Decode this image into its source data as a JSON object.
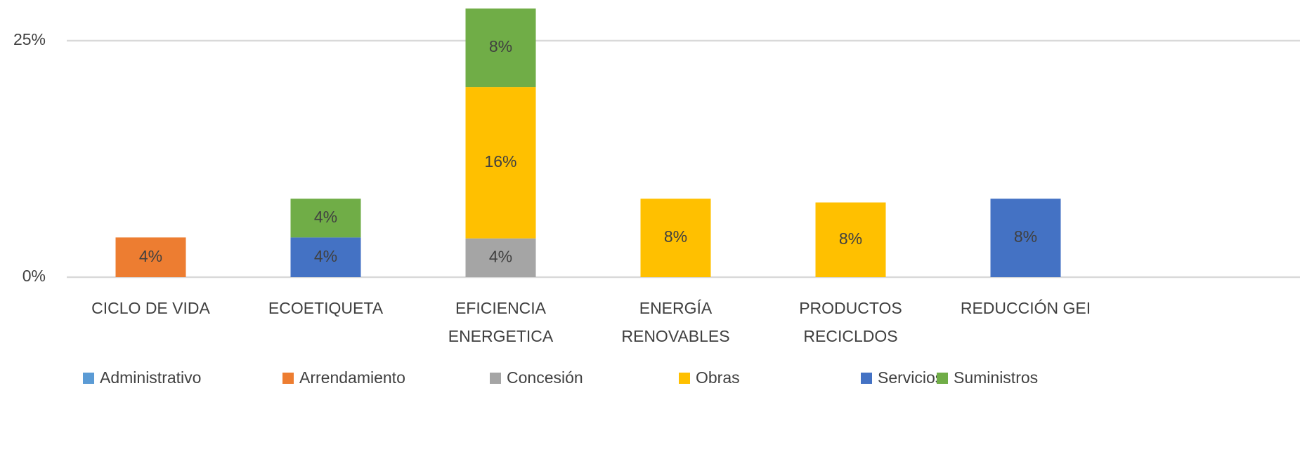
{
  "chart_data": {
    "type": "stacked_bar",
    "categories": [
      "CICLO DE VIDA",
      "ECOETIQUETA",
      "EFICIENCIA\nENERGETICA",
      "ENERGÍA\nRENOVABLES",
      "PRODUCTOS\nRECICLDOS",
      "REDUCCIÓN GEI"
    ],
    "series": [
      {
        "name": "Administrativo",
        "color": "#5b9bd5",
        "values": [
          null,
          null,
          null,
          null,
          null,
          null
        ],
        "value_labels": [
          null,
          null,
          null,
          null,
          null,
          null
        ]
      },
      {
        "name": "Arrendamiento",
        "color": "#ed7d31",
        "values": [
          4.2,
          null,
          null,
          null,
          null,
          null
        ],
        "value_labels": [
          "4%",
          null,
          null,
          null,
          null,
          null
        ]
      },
      {
        "name": "Concesión",
        "color": "#a5a5a5",
        "values": [
          null,
          null,
          4.1,
          null,
          null,
          null
        ],
        "value_labels": [
          null,
          null,
          "4%",
          null,
          null,
          null
        ]
      },
      {
        "name": "Obras",
        "color": "#ffc000",
        "values": [
          null,
          null,
          16,
          8.3,
          7.9,
          null
        ],
        "value_labels": [
          null,
          null,
          "16%",
          "8%",
          "8%",
          null
        ]
      },
      {
        "name": "Servicios",
        "color": "#4472c4",
        "values": [
          null,
          4.2,
          null,
          null,
          null,
          8.3
        ],
        "value_labels": [
          null,
          "4%",
          null,
          null,
          null,
          "8%"
        ]
      },
      {
        "name": "Suministros",
        "color": "#70ad47",
        "values": [
          null,
          4.1,
          8.3,
          null,
          null,
          null
        ],
        "value_labels": [
          null,
          "4%",
          "8%",
          null,
          null,
          null
        ]
      }
    ],
    "ylim": [
      0,
      28
    ],
    "yticks": [
      {
        "value": 0,
        "label": "0%"
      },
      {
        "value": 25,
        "label": "25%"
      }
    ],
    "grid": true,
    "legend": "bottom"
  }
}
